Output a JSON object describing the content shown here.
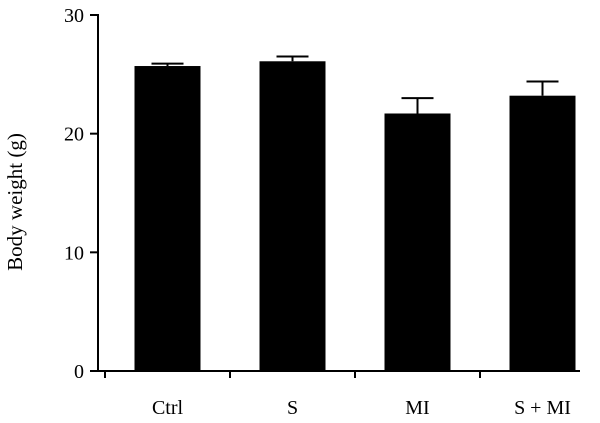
{
  "chart_data": {
    "type": "bar",
    "title": "",
    "xlabel": "",
    "ylabel": "Body weight (g)",
    "categories": [
      "Ctrl",
      "S",
      "MI",
      "S + MI"
    ],
    "values": [
      25.7,
      26.1,
      21.7,
      23.2
    ],
    "errors": [
      0.2,
      0.4,
      1.3,
      1.2
    ],
    "ylim": [
      0,
      30
    ],
    "yticks": [
      "0",
      "10",
      "20",
      "30"
    ],
    "grid": false,
    "legend": "none",
    "colors": {
      "bar": "#000000",
      "axis": "#000000"
    }
  }
}
